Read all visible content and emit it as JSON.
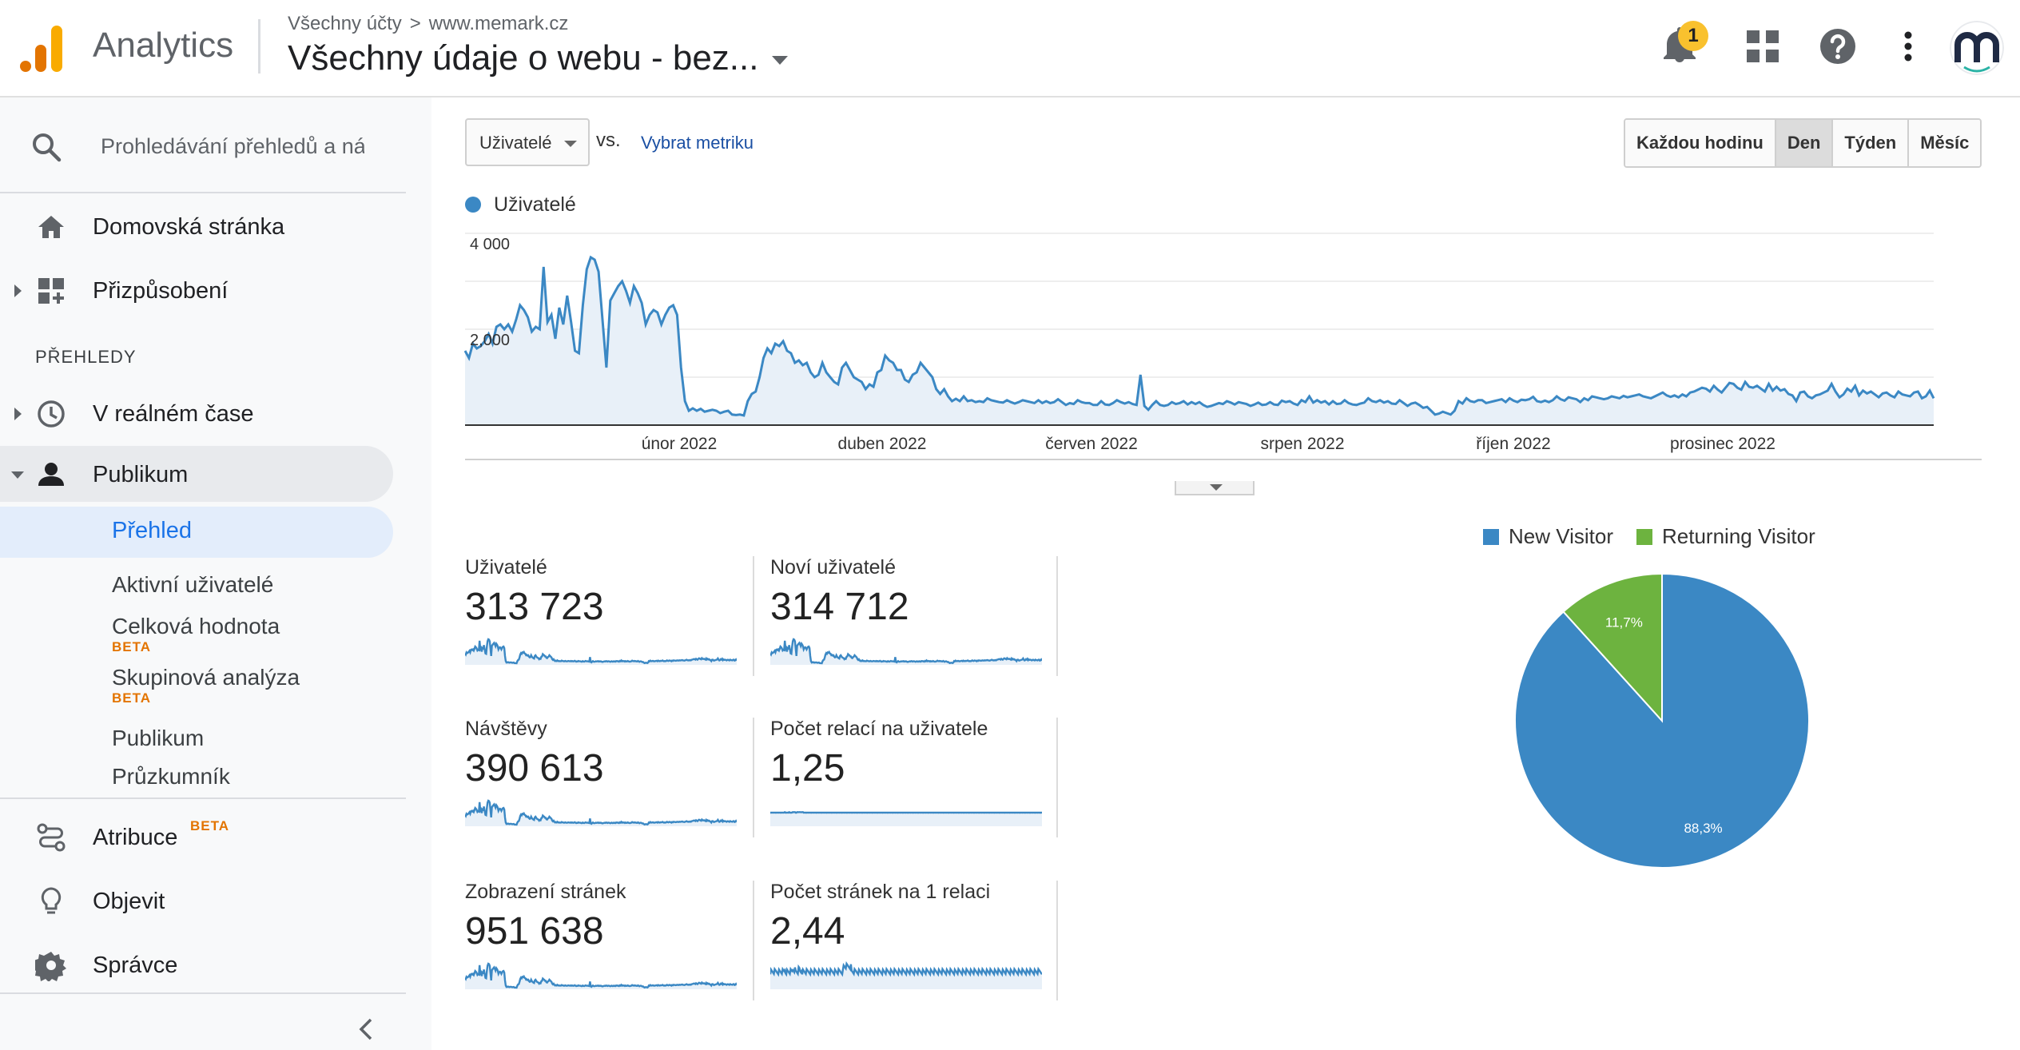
{
  "header": {
    "app_name": "Analytics",
    "breadcrumb": {
      "account": "Všechny účty",
      "chevron": ">",
      "property": "www.memark.cz"
    },
    "view_title": "Všechny údaje o webu - bez...",
    "notification_count": "1",
    "icons": [
      "analytics-logo-icon",
      "bell-icon",
      "apps-grid-icon",
      "help-icon",
      "more-vert-icon",
      "avatar"
    ]
  },
  "sidebar": {
    "search_placeholder": "Prohledávání přehledů a náp",
    "home": "Domovská stránka",
    "customization": "Přizpůsobení",
    "section_reports": "PŘEHLEDY",
    "realtime": "V reálném čase",
    "audience": "Publikum",
    "audience_items": {
      "overview": "Přehled",
      "active_users": "Aktivní uživatelé",
      "lifetime_value": "Celková hodnota",
      "cohort": "Skupinová analýza",
      "audiences": "Publikum",
      "explorer": "Průzkumník"
    },
    "beta": "BETA",
    "attribution": "Atribuce",
    "discover": "Objevit",
    "admin": "Správce"
  },
  "toolbar": {
    "metric": "Uživatelé",
    "vs": "vs.",
    "select_metric": "Vybrat metriku",
    "granularity": [
      "Každou hodinu",
      "Den",
      "Týden",
      "Měsíc"
    ],
    "granularity_selected": "Den"
  },
  "colors": {
    "series": "#3b88c4",
    "new_visitor": "#3b88c4",
    "returning_visitor": "#6db33f"
  },
  "chart_data": [
    {
      "type": "line",
      "series": [
        {
          "name": "Uživatelé",
          "values": [
            1550,
            1400,
            1700,
            1600,
            1650,
            1750,
            1900,
            1700,
            2050,
            2100,
            2000,
            2100,
            1950,
            2200,
            2500,
            2400,
            2250,
            1950,
            2050,
            2000,
            3300,
            2150,
            2300,
            1800,
            2450,
            2100,
            2700,
            2150,
            1550,
            1500,
            2500,
            3250,
            3500,
            3450,
            3200,
            2200,
            1200,
            2600,
            2750,
            2900,
            3000,
            2800,
            2550,
            2900,
            2750,
            2550,
            2100,
            2300,
            2400,
            2350,
            2100,
            2300,
            2450,
            2500,
            2300,
            1200,
            500,
            300,
            350,
            300,
            340,
            280,
            300,
            320,
            300,
            250,
            280,
            300,
            220,
            210,
            220,
            200,
            500,
            650,
            700,
            1000,
            1400,
            1600,
            1500,
            1700,
            1650,
            1750,
            1550,
            1500,
            1300,
            1350,
            1250,
            1300,
            1100,
            1000,
            1050,
            1300,
            1100,
            1000,
            900,
            850,
            1200,
            1300,
            1150,
            1000,
            950,
            900,
            750,
            850,
            800,
            1100,
            1150,
            1450,
            1350,
            1300,
            1150,
            1150,
            950,
            900,
            1050,
            1100,
            1300,
            1200,
            1100,
            1000,
            750,
            650,
            750,
            600,
            500,
            550,
            500,
            600,
            500,
            520,
            480,
            500,
            480,
            560,
            520,
            500,
            480,
            470,
            520,
            480,
            450,
            480,
            520,
            500,
            480,
            460,
            520,
            460,
            500,
            460,
            480,
            540,
            480,
            420,
            460,
            440,
            520,
            480,
            460,
            460,
            420,
            420,
            500,
            430,
            420,
            460,
            520,
            480,
            450,
            480,
            440,
            420,
            1050,
            400,
            320,
            420,
            500,
            420,
            400,
            420,
            480,
            440,
            460,
            500,
            430,
            480,
            440,
            480,
            420,
            380,
            400,
            430,
            460,
            440,
            500,
            470,
            430,
            480,
            460,
            440,
            400,
            430,
            470,
            420,
            430,
            480,
            430,
            420,
            510,
            480,
            500,
            450,
            420,
            520,
            480,
            600,
            470,
            520,
            470,
            500,
            430,
            500,
            440,
            450,
            520,
            460,
            430,
            420,
            450,
            470,
            560,
            500,
            480,
            520,
            470,
            500,
            450,
            440,
            520,
            460,
            400,
            450,
            470,
            420,
            360,
            380,
            300,
            220,
            240,
            280,
            250,
            220,
            300,
            500,
            450,
            560,
            500,
            480,
            520,
            520,
            460,
            480,
            500,
            520,
            540,
            480,
            560,
            510,
            480,
            530,
            520,
            540,
            590,
            500,
            480,
            510,
            480,
            520,
            600,
            540,
            510,
            580,
            560,
            540,
            480,
            560,
            520,
            600,
            580,
            560,
            540,
            560,
            600,
            580,
            560,
            610,
            580,
            600,
            620,
            640,
            600,
            580,
            560,
            600,
            640,
            680,
            620,
            590,
            620,
            580,
            640,
            600,
            680,
            700,
            740,
            780,
            760,
            700,
            820,
            740,
            680,
            780,
            880,
            860,
            780,
            740,
            900,
            800,
            780,
            820,
            760,
            700,
            860,
            720,
            800,
            720,
            750,
            650,
            620,
            500,
            680,
            700,
            600,
            560,
            620,
            640,
            680,
            720,
            860,
            700,
            580,
            640,
            760,
            700,
            820,
            620,
            720,
            660,
            700,
            640,
            580,
            660,
            680,
            620,
            580,
            700,
            640,
            620,
            600,
            680,
            700,
            560,
            600,
            720,
            560
          ]
        }
      ],
      "ylim": [
        0,
        4000
      ],
      "y_ticks": [
        "4 000",
        "2,000"
      ],
      "x_ticks": [
        "únor 2022",
        "duben 2022",
        "červen 2022",
        "srpen 2022",
        "říjen 2022",
        "prosinec 2022"
      ],
      "grid": true
    },
    {
      "type": "pie",
      "categories": [
        "New Visitor",
        "Returning Visitor"
      ],
      "values": [
        88.3,
        11.7
      ],
      "labels": [
        "88,3%",
        "11,7%"
      ],
      "legend": "top"
    }
  ],
  "kpis": [
    {
      "label": "Uživatelé",
      "value": "313 723",
      "spark": "users"
    },
    {
      "label": "Noví uživatelé",
      "value": "314 712",
      "spark": "users"
    },
    {
      "label": "Návštěvy",
      "value": "390 613",
      "spark": "users"
    },
    {
      "label": "Počet relací na uživatele",
      "value": "1,25",
      "spark": "flat"
    },
    {
      "label": "Zobrazení stránek",
      "value": "951 638",
      "spark": "users"
    },
    {
      "label": "Počet stránek na 1 relaci",
      "value": "2,44",
      "spark": "noisy"
    }
  ]
}
